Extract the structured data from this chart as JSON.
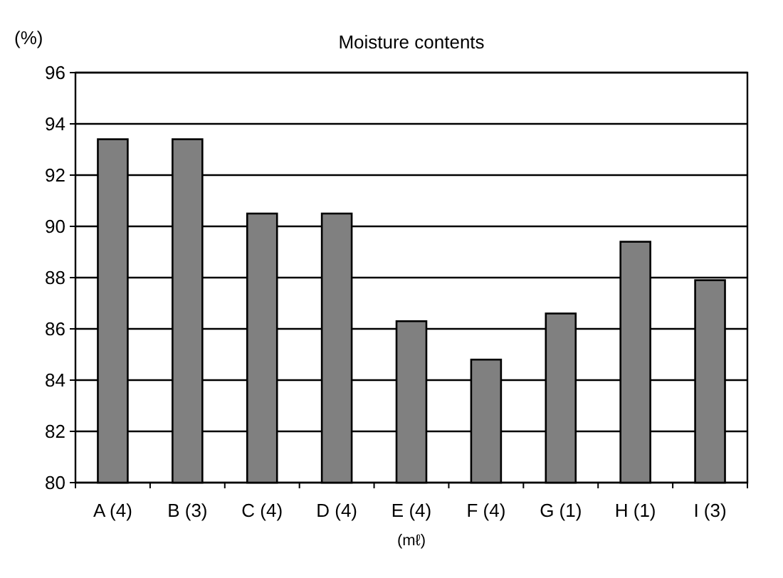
{
  "chart_data": {
    "type": "bar",
    "title": "Moisture contents",
    "ylabel": "(%)",
    "xlabel": "(mℓ)",
    "categories": [
      "A (4)",
      "B (3)",
      "C (4)",
      "D (4)",
      "E (4)",
      "F (4)",
      "G (1)",
      "H (1)",
      "I (3)"
    ],
    "values": [
      93.4,
      93.4,
      90.5,
      90.5,
      86.3,
      84.8,
      86.6,
      89.4,
      87.9
    ],
    "color": "#808080",
    "ylim": [
      80,
      96
    ],
    "yticks": [
      80,
      82,
      84,
      86,
      88,
      90,
      92,
      94,
      96
    ],
    "grid": "y"
  }
}
